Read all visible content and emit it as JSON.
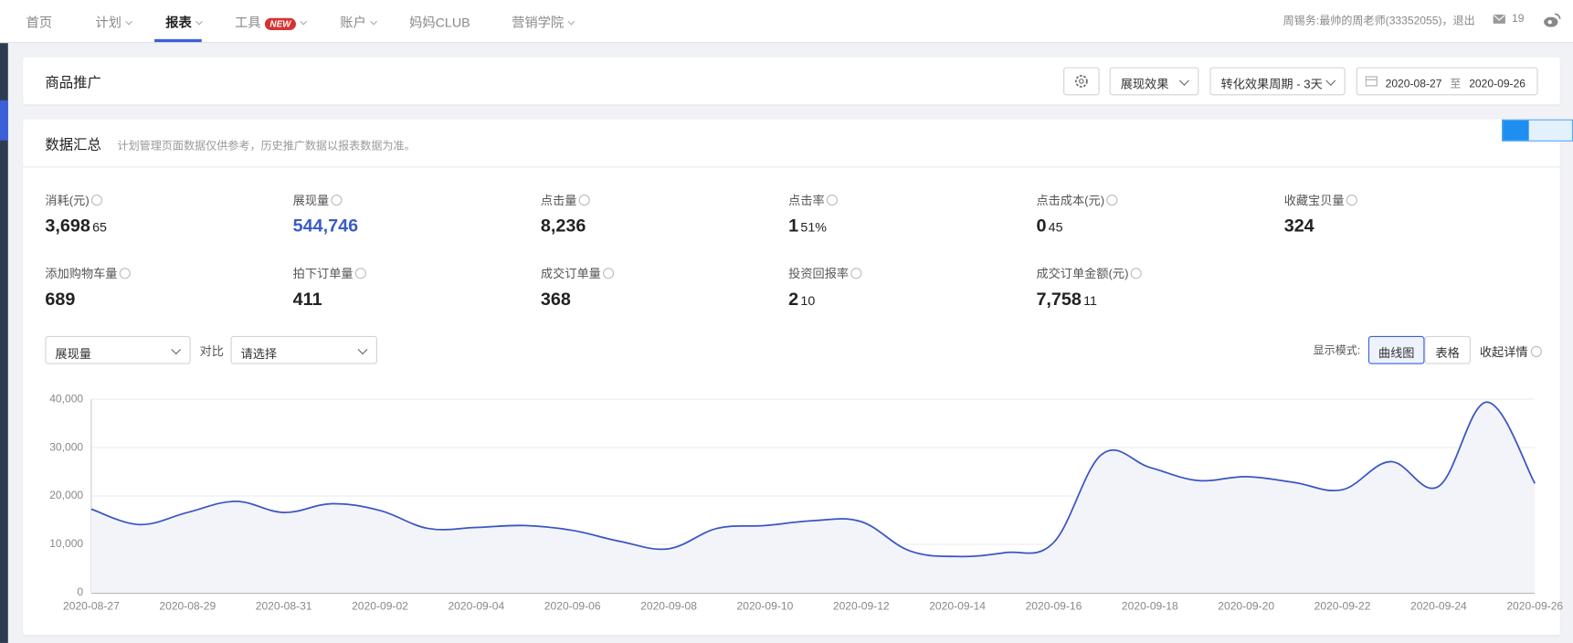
{
  "nav": {
    "items": [
      "首页",
      "计划",
      "报表",
      "工具",
      "账户",
      "妈妈CLUB",
      "营销学院"
    ],
    "new_badge": "NEW",
    "user": "周锡务:最帅的周老师(33352055)，退出",
    "msg_count": "19"
  },
  "header": {
    "title": "商品推广",
    "select_effect": "展现效果",
    "select_period": "转化效果周期 - 3天",
    "date_from": "2020-08-27",
    "date_sep": "至",
    "date_to": "2020-09-26"
  },
  "summary": {
    "title": "数据汇总",
    "note": "计划管理页面数据仅供参考，历史推广数据以报表数据为准。",
    "metrics": [
      {
        "label": "消耗(元)",
        "int": "3,698",
        "dec": "65"
      },
      {
        "label": "展现量",
        "int": "544,746"
      },
      {
        "label": "点击量",
        "int": "8,236"
      },
      {
        "label": "点击率",
        "int": "1",
        "dec": "51%"
      },
      {
        "label": "点击成本(元)",
        "int": "0",
        "dec": "45"
      },
      {
        "label": "收藏宝贝量",
        "int": "324"
      },
      {
        "label": "添加购物车量",
        "int": "689"
      },
      {
        "label": "拍下订单量",
        "int": "411"
      },
      {
        "label": "成交订单量",
        "int": "368"
      },
      {
        "label": "投资回报率",
        "int": "2",
        "dec": "10"
      },
      {
        "label": "成交订单金额(元)",
        "int": "7,758",
        "dec": "11"
      }
    ]
  },
  "controls": {
    "metric_select": "展现量",
    "compare_label": "对比",
    "compare_select": "请选择",
    "mode_label": "显示模式:",
    "mode_options": [
      "曲线图",
      "表格"
    ],
    "collapse": "收起详情"
  },
  "chart": {
    "type": "line",
    "x": [
      "2020-08-27",
      null,
      "2020-08-29",
      null,
      "2020-08-31",
      null,
      "2020-09-02",
      null,
      "2020-09-04",
      null,
      "2020-09-06",
      null,
      "2020-09-08",
      null,
      "2020-09-10",
      null,
      "2020-09-12",
      null,
      "2020-09-14",
      null,
      "2020-09-16",
      null,
      "2020-09-18",
      null,
      "2020-09-20",
      null,
      "2020-09-22",
      null,
      "2020-09-24",
      null,
      "2020-09-26"
    ],
    "series": [
      {
        "color": "#3a55c4",
        "values": [
          17300,
          14100,
          16600,
          18900,
          16600,
          18400,
          17000,
          13300,
          13500,
          13900,
          12900,
          10600,
          9100,
          13300,
          13900,
          14900,
          14700,
          8700,
          7500,
          8300,
          10400,
          28600,
          25900,
          23200,
          24000,
          22800,
          21300,
          27100,
          22000,
          39400,
          22600
        ]
      }
    ],
    "ylim": [
      0,
      40000
    ],
    "yticks": [
      0,
      {
        "value": 10000,
        "label": "10,000"
      },
      {
        "value": 20000,
        "label": "20,000"
      },
      {
        "value": 30000,
        "label": "30,000"
      },
      {
        "value": 40000,
        "label": "40,000"
      }
    ],
    "grid": true
  }
}
